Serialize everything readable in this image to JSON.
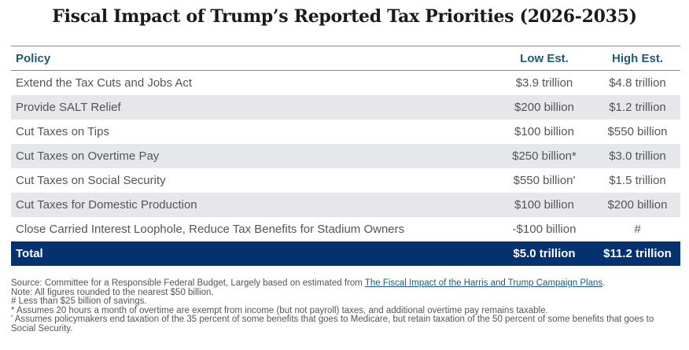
{
  "title": "Fiscal Impact of Trump’s Reported Tax Priorities (2026-2035)",
  "table": {
    "headers": {
      "policy": "Policy",
      "low": "Low Est.",
      "high": "High Est."
    },
    "rows": [
      {
        "policy": "Extend the Tax Cuts and Jobs Act",
        "low": "$3.9 trillion",
        "high": "$4.8 trillion"
      },
      {
        "policy": "Provide SALT Relief",
        "low": "$200 billion",
        "high": "$1.2 trillion"
      },
      {
        "policy": "Cut Taxes on Tips",
        "low": "$100 billion",
        "high": "$550 billion"
      },
      {
        "policy": "Cut Taxes on Overtime Pay",
        "low": "$250 billion*",
        "high": "$3.0 trillion"
      },
      {
        "policy": "Cut Taxes on Social Security",
        "low": "$550 billion'",
        "high": "$1.5 trillion"
      },
      {
        "policy": "Cut Taxes for Domestic Production",
        "low": "$100 billion",
        "high": "$200 billion"
      },
      {
        "policy": "Close Carried Interest Loophole, Reduce Tax Benefits for Stadium Owners",
        "low": "-$100 billion",
        "high": "#"
      }
    ],
    "total": {
      "policy": "Total",
      "low": "$5.0 trillion",
      "high": "$11.2 trillion"
    }
  },
  "footer": {
    "source_prefix": "Source: Committee for a Responsible Federal Budget, Largely based on estimated from ",
    "source_link": "The Fiscal Impact of the Harris and Trump Campaign Plans",
    "source_suffix": ".",
    "note": "Note: All figures rounded to the nearest $50 billion.",
    "hash_note": "# Less than $25 billion of savings.",
    "star_note": "* Assumes 20 hours a month of overtime are exempt from income (but not payroll) taxes, and additional overtime pay remains taxable.",
    "prime_note": "' Assumes policymakers end taxation of the 35 percent of some benefits that goes to Medicare, but retain taxation of the 50 percent of some benefits that goes to Social Security."
  },
  "colors": {
    "header_text": "#1d5b7a",
    "total_bg": "#04316f",
    "stripe_bg": "#e6e7eb",
    "body_text": "#555555"
  }
}
